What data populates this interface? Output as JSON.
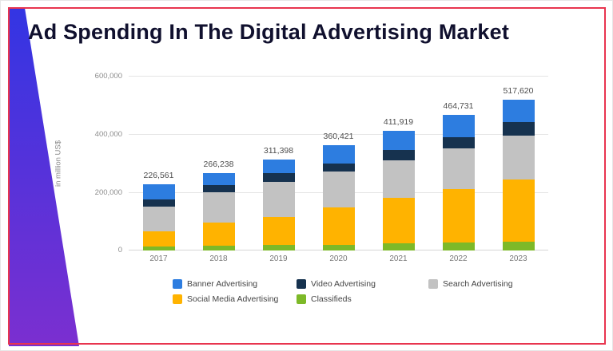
{
  "slide": {
    "title": "Ad Spending In The Digital Advertising Market"
  },
  "chart_data": {
    "type": "bar",
    "stacked": true,
    "title": "Ad Spending In The Digital Advertising Market",
    "categories": [
      "2017",
      "2018",
      "2019",
      "2020",
      "2021",
      "2022",
      "2023"
    ],
    "series": [
      {
        "name": "Classifieds",
        "color": "#7db928",
        "values": [
          15000,
          17000,
          18000,
          20000,
          24000,
          27000,
          30000
        ]
      },
      {
        "name": "Social Media Advertising",
        "color": "#ffb300",
        "values": [
          50000,
          78000,
          97000,
          128000,
          156000,
          185000,
          215000
        ]
      },
      {
        "name": "Search Advertising",
        "color": "#c2c2c2",
        "values": [
          85000,
          105000,
          120000,
          122000,
          130000,
          138000,
          150000
        ]
      },
      {
        "name": "Video Advertising",
        "color": "#16324f",
        "values": [
          25000,
          25000,
          30000,
          30000,
          35000,
          40000,
          45000
        ]
      },
      {
        "name": "Banner Advertising",
        "color": "#2d7de0",
        "values": [
          51561,
          41238,
          46398,
          60421,
          66919,
          74731,
          77620
        ]
      }
    ],
    "totals": [
      "226,561",
      "266,238",
      "311,398",
      "360,421",
      "411,919",
      "464,731",
      "517,620"
    ],
    "ylabel": "in million US$",
    "ylim": [
      0,
      600000
    ],
    "yticks": [
      "600,000",
      "400,000",
      "200,000",
      "0"
    ],
    "grid": true,
    "legend_position": "bottom",
    "legend": [
      {
        "label": "Banner Advertising",
        "color": "#2d7de0"
      },
      {
        "label": "Video Advertising",
        "color": "#16324f"
      },
      {
        "label": "Search Advertising",
        "color": "#c2c2c2"
      },
      {
        "label": "Social Media Advertising",
        "color": "#ffb300"
      },
      {
        "label": "Classifieds",
        "color": "#7db928"
      }
    ]
  }
}
